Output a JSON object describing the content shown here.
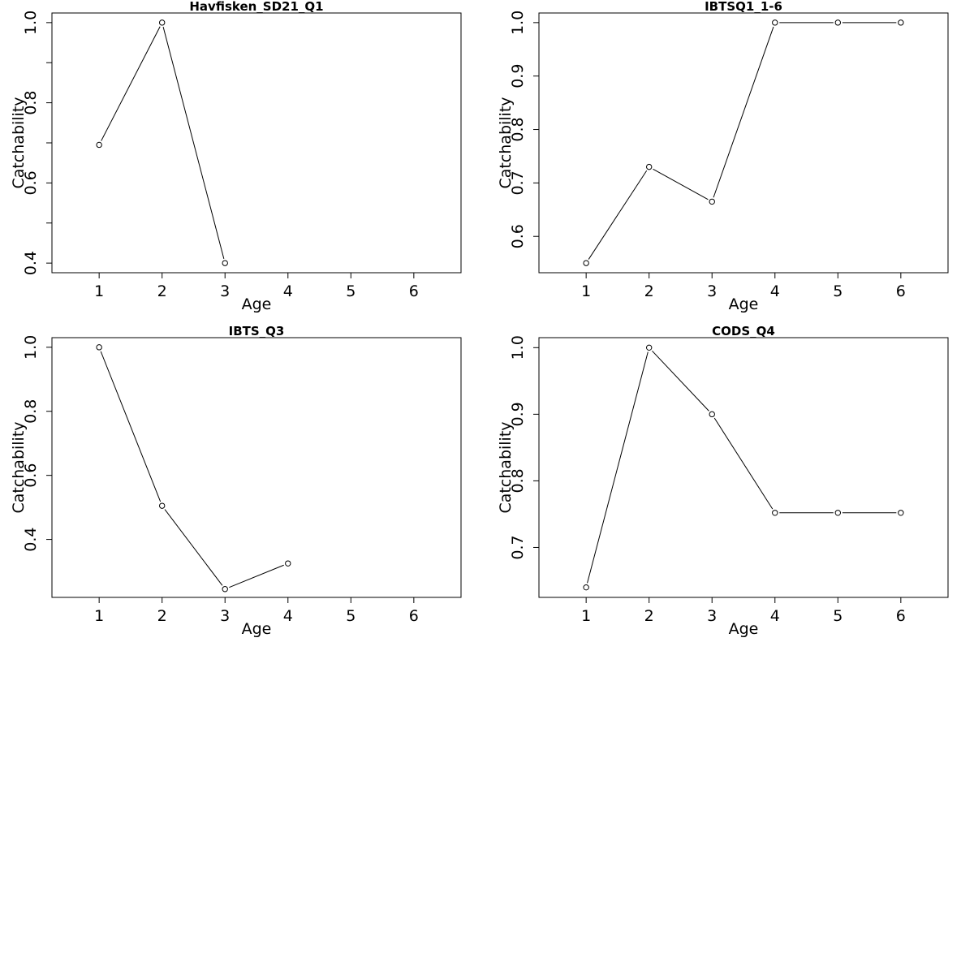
{
  "chart_data": [
    {
      "type": "line",
      "title": "Havfisken_SD21_Q1",
      "xlabel": "Age",
      "ylabel": "Catchability",
      "xlim": [
        0.25,
        6.75
      ],
      "ylim": [
        0.376,
        1.024
      ],
      "x_ticks": [
        "1",
        "2",
        "3",
        "4",
        "5",
        "6"
      ],
      "y_ticks": [
        {
          "value": 0.4,
          "label": "0.4"
        },
        {
          "value": 0.5,
          "label": ""
        },
        {
          "value": 0.6,
          "label": "0.6"
        },
        {
          "value": 0.7,
          "label": ""
        },
        {
          "value": 0.8,
          "label": "0.8"
        },
        {
          "value": 0.9,
          "label": ""
        },
        {
          "value": 1.0,
          "label": "1.0"
        }
      ],
      "x": [
        1,
        2,
        3
      ],
      "y": [
        0.695,
        1.0,
        0.4
      ]
    },
    {
      "type": "line",
      "title": "IBTSQ1_1-6",
      "xlabel": "Age",
      "ylabel": "Catchability",
      "xlim": [
        0.25,
        6.75
      ],
      "ylim": [
        0.532,
        1.018
      ],
      "x_ticks": [
        "1",
        "2",
        "3",
        "4",
        "5",
        "6"
      ],
      "y_ticks": [
        {
          "value": 0.6,
          "label": "0.6"
        },
        {
          "value": 0.7,
          "label": "0.7"
        },
        {
          "value": 0.8,
          "label": "0.8"
        },
        {
          "value": 0.9,
          "label": "0.9"
        },
        {
          "value": 1.0,
          "label": "1.0"
        }
      ],
      "x": [
        1,
        2,
        3,
        4,
        5,
        6
      ],
      "y": [
        0.55,
        0.73,
        0.665,
        1.0,
        1.0,
        1.0
      ]
    },
    {
      "type": "line",
      "title": "IBTS_Q3",
      "xlabel": "Age",
      "ylabel": "Catchability",
      "xlim": [
        0.25,
        6.75
      ],
      "ylim": [
        0.219,
        1.03
      ],
      "x_ticks": [
        "1",
        "2",
        "3",
        "4",
        "5",
        "6"
      ],
      "y_ticks": [
        {
          "value": 0.4,
          "label": "0.4"
        },
        {
          "value": 0.6,
          "label": "0.6"
        },
        {
          "value": 0.8,
          "label": "0.8"
        },
        {
          "value": 1.0,
          "label": "1.0"
        }
      ],
      "x": [
        1,
        2,
        3,
        4
      ],
      "y": [
        1.0,
        0.505,
        0.245,
        0.325
      ]
    },
    {
      "type": "line",
      "title": "CODS_Q4",
      "xlabel": "Age",
      "ylabel": "Catchability",
      "xlim": [
        0.25,
        6.75
      ],
      "ylim": [
        0.625,
        1.015
      ],
      "x_ticks": [
        "1",
        "2",
        "3",
        "4",
        "5",
        "6"
      ],
      "y_ticks": [
        {
          "value": 0.7,
          "label": "0.7"
        },
        {
          "value": 0.8,
          "label": "0.8"
        },
        {
          "value": 0.9,
          "label": "0.9"
        },
        {
          "value": 1.0,
          "label": "1.0"
        }
      ],
      "x": [
        1,
        2,
        3,
        4,
        5,
        6
      ],
      "y": [
        0.64,
        1.0,
        0.9,
        0.752,
        0.752,
        0.752
      ]
    }
  ]
}
